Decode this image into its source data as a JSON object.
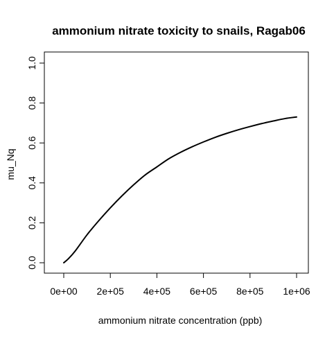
{
  "chart_data": {
    "type": "line",
    "title": "ammonium nitrate toxicity to snails, Ragab06",
    "xlabel": "ammonium nitrate concentration (ppb)",
    "ylabel": "mu_Nq",
    "xlim": [
      0,
      1000000
    ],
    "ylim": [
      0,
      1.0
    ],
    "grid": false,
    "x_ticks": [
      {
        "value": 0,
        "label": "0e+00"
      },
      {
        "value": 200000,
        "label": "2e+05"
      },
      {
        "value": 400000,
        "label": "4e+05"
      },
      {
        "value": 600000,
        "label": "6e+05"
      },
      {
        "value": 800000,
        "label": "8e+05"
      },
      {
        "value": 1000000,
        "label": "1e+06"
      }
    ],
    "y_ticks": [
      {
        "value": 0.0,
        "label": "0.0"
      },
      {
        "value": 0.2,
        "label": "0.2"
      },
      {
        "value": 0.4,
        "label": "0.4"
      },
      {
        "value": 0.6,
        "label": "0.6"
      },
      {
        "value": 0.8,
        "label": "0.8"
      },
      {
        "value": 1.0,
        "label": "1.0"
      }
    ],
    "series": [
      {
        "color": "#000000",
        "x": [
          0,
          20000,
          50000,
          100000,
          150000,
          200000,
          250000,
          300000,
          350000,
          400000,
          450000,
          500000,
          550000,
          600000,
          650000,
          700000,
          750000,
          800000,
          850000,
          900000,
          950000,
          1000000
        ],
        "y": [
          0.0,
          0.02,
          0.06,
          0.14,
          0.21,
          0.275,
          0.335,
          0.39,
          0.44,
          0.48,
          0.52,
          0.552,
          0.58,
          0.605,
          0.628,
          0.648,
          0.666,
          0.682,
          0.697,
          0.71,
          0.722,
          0.73
        ]
      }
    ]
  }
}
